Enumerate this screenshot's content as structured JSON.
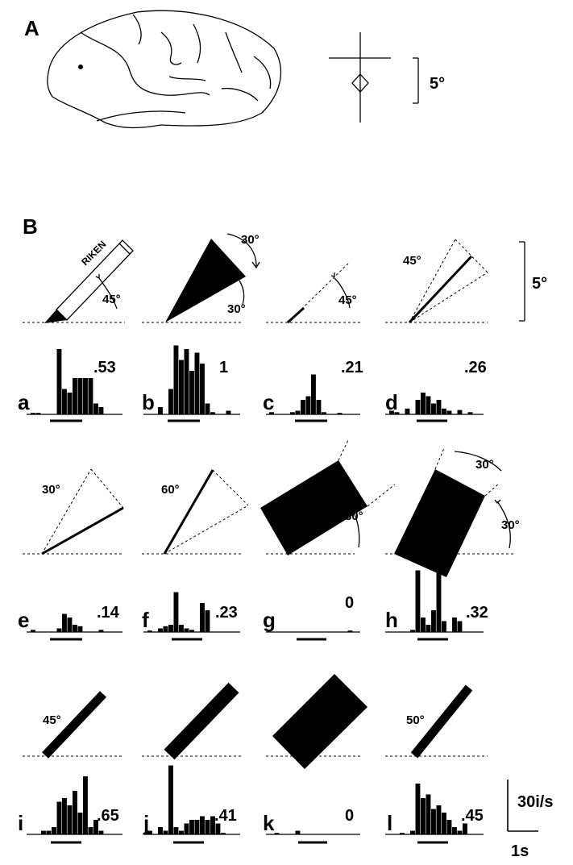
{
  "panel_labels": {
    "A": "A",
    "B": "B"
  },
  "scale_bars": {
    "visual_angle_A": "5°",
    "visual_angle_B": "5°",
    "rate": "30i/s",
    "time": "1s"
  },
  "pencil_text": "RIKEN",
  "row1": {
    "angles": {
      "a": "45°",
      "b_top": "30°",
      "b_bottom": "30°",
      "c": "45°",
      "d": "45°"
    },
    "items": [
      {
        "letter": "a",
        "response": ".53"
      },
      {
        "letter": "b",
        "response": "1"
      },
      {
        "letter": "c",
        "response": ".21"
      },
      {
        "letter": "d",
        "response": ".26"
      }
    ]
  },
  "row2": {
    "angles": {
      "e": "30°",
      "f": "60°",
      "g": "30°",
      "h_top": "30°",
      "h_right": "30°"
    },
    "items": [
      {
        "letter": "e",
        "response": ".14"
      },
      {
        "letter": "f",
        "response": ".23"
      },
      {
        "letter": "g",
        "response": "0"
      },
      {
        "letter": "h",
        "response": ".32"
      }
    ]
  },
  "row3": {
    "angles": {
      "i": "45°",
      "l": "50°"
    },
    "items": [
      {
        "letter": "i",
        "response": ".65"
      },
      {
        "letter": "j",
        "response": ".41"
      },
      {
        "letter": "k",
        "response": "0"
      },
      {
        "letter": "l",
        "response": ".45"
      }
    ]
  },
  "histograms": {
    "a": [
      0.02,
      0.02,
      0,
      0,
      0,
      0.9,
      0.35,
      0.3,
      0.5,
      0.5,
      0.5,
      0.5,
      0.15,
      0.1,
      0,
      0
    ],
    "b": [
      0,
      0,
      0.1,
      0,
      0.35,
      0.95,
      0.75,
      0.9,
      0.6,
      0.85,
      0.7,
      0.15,
      0.03,
      0,
      0,
      0.05
    ],
    "c": [
      0.03,
      0,
      0,
      0,
      0.03,
      0.05,
      0.2,
      0.25,
      0.55,
      0.2,
      0.03,
      0,
      0,
      0.02,
      0,
      0
    ],
    "d": [
      0.05,
      0.03,
      0,
      0.08,
      0,
      0.2,
      0.3,
      0.25,
      0.15,
      0.2,
      0.08,
      0.05,
      0,
      0.06,
      0,
      0.03
    ],
    "e": [
      0.03,
      0,
      0,
      0,
      0,
      0.05,
      0.25,
      0.2,
      0.1,
      0.08,
      0,
      0,
      0,
      0.03,
      0,
      0
    ],
    "f": [
      0.02,
      0,
      0.05,
      0.08,
      0.1,
      0.55,
      0.1,
      0.05,
      0.03,
      0,
      0.4,
      0.3,
      0,
      0,
      0,
      0
    ],
    "g": [
      0,
      0,
      0,
      0,
      0,
      0,
      0,
      0,
      0,
      0,
      0,
      0,
      0,
      0,
      0,
      0.02
    ],
    "h": [
      0,
      0,
      0,
      0,
      0.03,
      0.85,
      0.2,
      0.1,
      0.3,
      0.85,
      0.15,
      0,
      0.2,
      0.15,
      0,
      0
    ],
    "i": [
      0,
      0,
      0.05,
      0.05,
      0.1,
      0.45,
      0.5,
      0.4,
      0.6,
      0.3,
      0.8,
      0.1,
      0.2,
      0.05,
      0,
      0
    ],
    "j": [
      0.05,
      0,
      0.1,
      0.05,
      0.95,
      0.1,
      0.05,
      0.15,
      0.2,
      0.2,
      0.25,
      0.2,
      0.25,
      0.15,
      0.02,
      0
    ],
    "k": [
      0,
      0.02,
      0,
      0,
      0,
      0.05,
      0,
      0,
      0,
      0,
      0,
      0,
      0,
      0,
      0,
      0
    ],
    "l": [
      0,
      0,
      0.02,
      0,
      0.05,
      0.7,
      0.5,
      0.55,
      0.35,
      0.4,
      0.3,
      0.2,
      0.1,
      0.05,
      0.15,
      0
    ]
  }
}
